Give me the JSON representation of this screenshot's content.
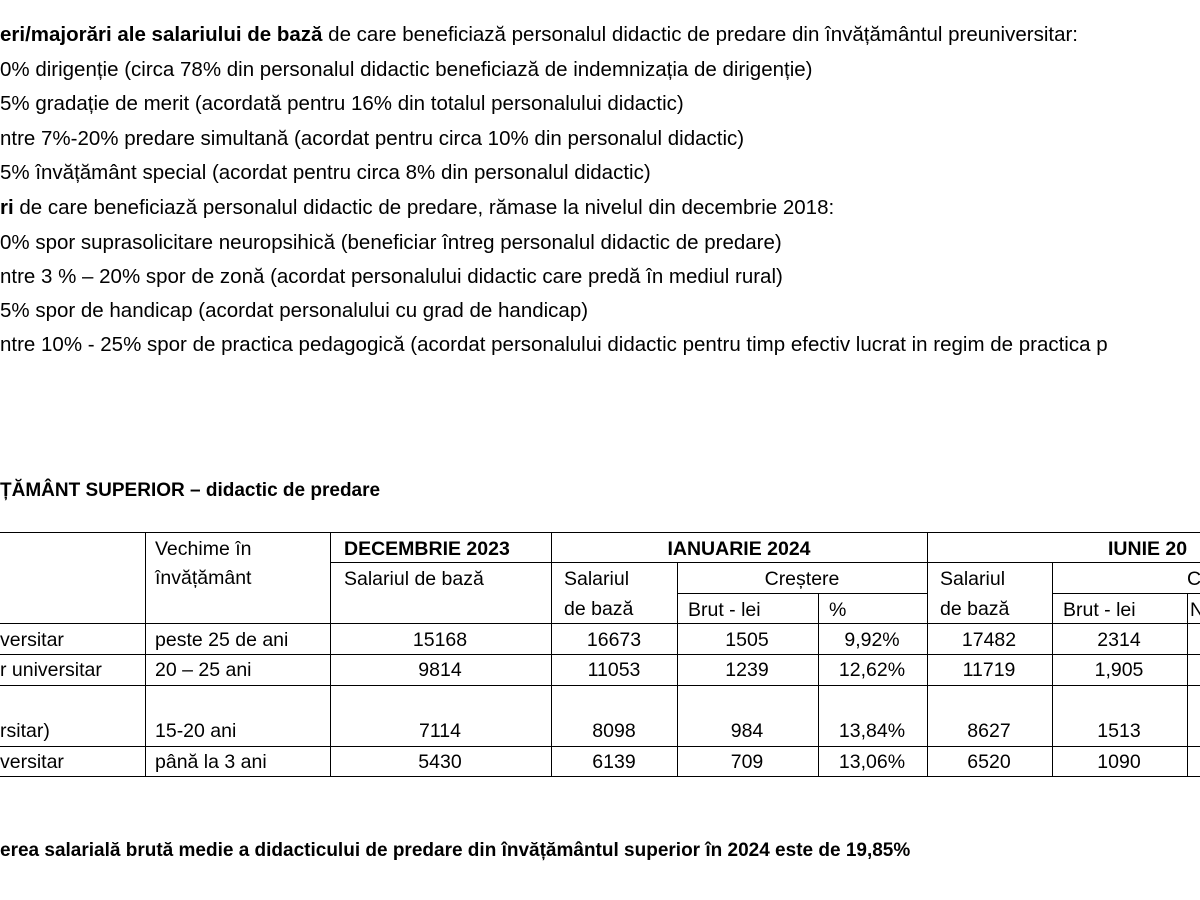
{
  "bonuses_section": {
    "heading_bold": "eri/majorări ale salariului de bază",
    "heading_rest": " de care beneficiază personalul didactic de predare din învățământul preuniversitar:",
    "items": [
      "0% dirigenție (circa 78% din personalul didactic beneficiază de indemnizația de dirigenție)",
      "5% gradație de merit (acordată pentru 16% din totalul personalului didactic)",
      "ntre 7%-20% predare simultană (acordat pentru circa 10% din personalul didactic)",
      "5% învățământ special (acordat pentru circa 8% din personalul didactic)"
    ]
  },
  "spor_section": {
    "heading_bold": "ri",
    "heading_rest": " de care beneficiază personalul didactic de predare, rămase la nivelul din decembrie 2018:",
    "items": [
      "0% spor suprasolicitare neuropsihică (beneficiar întreg personalul didactic de predare)",
      "ntre 3 % – 20% spor de zonă (acordat personalului didactic care predă în mediul rural)",
      "5% spor de handicap (acordat personalului cu grad de handicap)",
      "ntre 10% - 25% spor de practica pedagogică (acordat personalului didactic pentru timp efectiv lucrat in regim de practica p"
    ]
  },
  "table_title": "ȚĂMÂNT SUPERIOR – didactic de predare",
  "table": {
    "headers": {
      "vechime_line1": "Vechime în",
      "vechime_line2": "învățământ",
      "dec2023": "DECEMBRIE 2023",
      "dec2023_sub": "Salariul de bază",
      "ian2024": "IANUARIE 2024",
      "ian_salariul_line1": "Salariul",
      "ian_salariul_line2": "de bază",
      "crestere": "Creștere",
      "brut_lei": "Brut - lei",
      "percent": "%",
      "iun2024": "IUNIE 20",
      "iun_salariul_line1": "Salariul",
      "iun_salariul_line2": "de bază",
      "iun_crestere_partial": "C",
      "iun_brut_lei": "Brut - lei",
      "iun_percent_partial": "N"
    },
    "rows": [
      {
        "function": "versitar",
        "vechime": "peste 25 de ani",
        "dec_salariu": "15168",
        "ian_salariu": "16673",
        "ian_brut": "1505",
        "ian_pct": "9,92%",
        "iun_salariu": "17482",
        "iun_brut": "2314"
      },
      {
        "function": "r universitar",
        "vechime": "20 – 25 ani",
        "dec_salariu": "9814",
        "ian_salariu": "11053",
        "ian_brut": "1239",
        "ian_pct": "12,62%",
        "iun_salariu": "11719",
        "iun_brut": "1,905"
      },
      {
        "function": "rsitar)",
        "vechime": "15-20 ani",
        "dec_salariu": "7114",
        "ian_salariu": "8098",
        "ian_brut": "984",
        "ian_pct": "13,84%",
        "iun_salariu": "8627",
        "iun_brut": "1513"
      },
      {
        "function": "versitar",
        "vechime": "până la 3 ani",
        "dec_salariu": "5430",
        "ian_salariu": "6139",
        "ian_brut": "709",
        "ian_pct": "13,06%",
        "iun_salariu": "6520",
        "iun_brut": "1090"
      }
    ]
  },
  "conclusion": "erea salarială brută medie a didacticului de predare din învățământul superior în 2024 este de 19,85%"
}
